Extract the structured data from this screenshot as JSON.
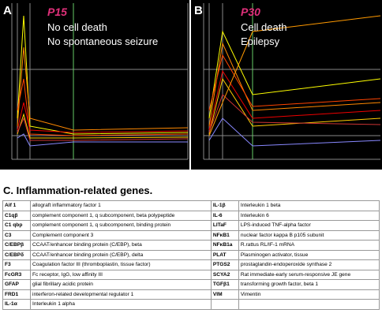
{
  "panels": [
    {
      "letter": "A",
      "age": "P15",
      "lines": [
        "No cell death",
        "No spontaneous seizure"
      ]
    },
    {
      "letter": "B",
      "age": "P30",
      "lines": [
        "Cell death",
        "Epilepsy"
      ]
    }
  ],
  "table": {
    "title": "C. Inflammation-related genes.",
    "rows": [
      [
        "Aif 1",
        "allograft inflammatory factor 1",
        "IL-1β",
        "Interleukin 1 beta"
      ],
      [
        "C1qβ",
        "complement component 1, q subcomponent, beta polypeptide",
        "IL-6",
        "Interleukin 6"
      ],
      [
        "C1 qbp",
        "complement component 1, q subcomponent, binding protein",
        "LITaF",
        "LPS-induced TNF-alpha factor"
      ],
      [
        "C3",
        "Complement component 3",
        "NFκB1",
        "nuclear factor kappa B p105 subunit"
      ],
      [
        "C/EBPβ",
        "CCAAT/enhancer binding protein (C/EBP), beta",
        "NFκB1a",
        "R.rattus RL/IF-1 mRNA"
      ],
      [
        "C/EBPδ",
        "CCAAT/enhancer binding protein (C/EBP), delta",
        "PLAT",
        "Plasminogen activator, tissue"
      ],
      [
        "F3",
        "Coagulation factor III (thromboplastin, tissue factor)",
        "PTGS2",
        "prostaglandin-endoperoxide synthase 2"
      ],
      [
        "FcGR3",
        "Fc receptor, IgG, low affinity III",
        "SCYA2",
        "Rat immediate-early serum-responsive JE gene"
      ],
      [
        "GFAP",
        "glial fibrillary acidic protein",
        "TGFβ1",
        "transforming growth factor, beta 1"
      ],
      [
        "FRD1",
        "interferon-related developmental regulator 1",
        "VIM",
        "Vimentin"
      ],
      [
        "IL-1α",
        "Interleukin 1 alpha"
      ]
    ]
  }
}
